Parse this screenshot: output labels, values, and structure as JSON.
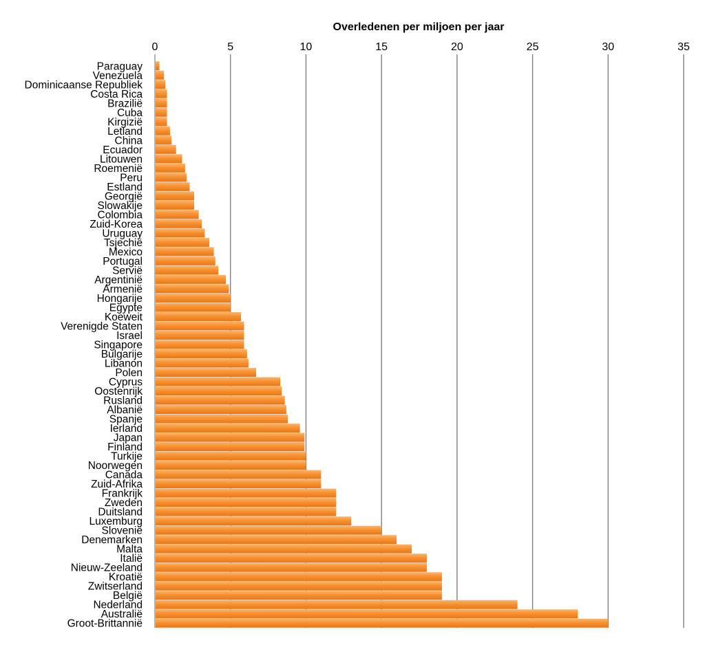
{
  "chart_data": {
    "type": "bar",
    "orientation": "horizontal",
    "title": "",
    "xlabel": "Overledenen per miljoen per jaar",
    "ylabel": "",
    "xlim": [
      0,
      35
    ],
    "xticks": [
      "0",
      "5",
      "10",
      "15",
      "20",
      "25",
      "30",
      "35"
    ],
    "x_axis_position": "top",
    "grid": true,
    "legend": "none",
    "bar_color": "#F7922F",
    "bar_color_light": "#FBB36D",
    "bar_color_dark": "#E8761B",
    "categories": [
      "Paraguay",
      "Venezuela",
      "Dominicaanse Republiek",
      "Costa Rica",
      "Brazilië",
      "Cuba",
      "Kirgizië",
      "Letland",
      "China",
      "Ecuador",
      "Litouwen",
      "Roemenië",
      "Peru",
      "Estland",
      "Georgië",
      "Slowakije",
      "Colombia",
      "Zuid-Korea",
      "Uruguay",
      "Tsjechië",
      "Mexico",
      "Portugal",
      "Servië",
      "Argentinië",
      "Armenië",
      "Hongarije",
      "Egypte",
      "Koeweit",
      "Verenigde Staten",
      "Israel",
      "Singapore",
      "Bulgarije",
      "Libanon",
      "Polen",
      "Cyprus",
      "Oostenrijk",
      "Rusland",
      "Albanië",
      "Spanje",
      "Ierland",
      "Japan",
      "Finland",
      "Turkije",
      "Noorwegen",
      "Canada",
      "Zuid-Afrika",
      "Frankrijk",
      "Zweden",
      "Duitsland",
      "Luxemburg",
      "Slovenië",
      "Denemarken",
      "Malta",
      "Italië",
      "Nieuw-Zeeland",
      "Kroatië",
      "Zwitserland",
      "België",
      "Nederland",
      "Australië",
      "Groot-Brittannië"
    ],
    "values": [
      0.3,
      0.6,
      0.7,
      0.8,
      0.8,
      0.8,
      0.8,
      1.0,
      1.1,
      1.4,
      1.8,
      2.0,
      2.1,
      2.3,
      2.6,
      2.6,
      2.9,
      3.1,
      3.3,
      3.6,
      3.9,
      4.0,
      4.2,
      4.7,
      4.9,
      5.0,
      5.0,
      5.7,
      5.9,
      5.9,
      5.9,
      6.1,
      6.2,
      6.7,
      8.3,
      8.4,
      8.6,
      8.7,
      8.8,
      9.6,
      9.9,
      9.9,
      10.0,
      10.0,
      11.0,
      11.0,
      12.0,
      12.0,
      12.0,
      13.0,
      15.0,
      16.0,
      17.0,
      18.0,
      18.0,
      19.0,
      19.0,
      19.0,
      24.0,
      28.0,
      30.0
    ]
  }
}
